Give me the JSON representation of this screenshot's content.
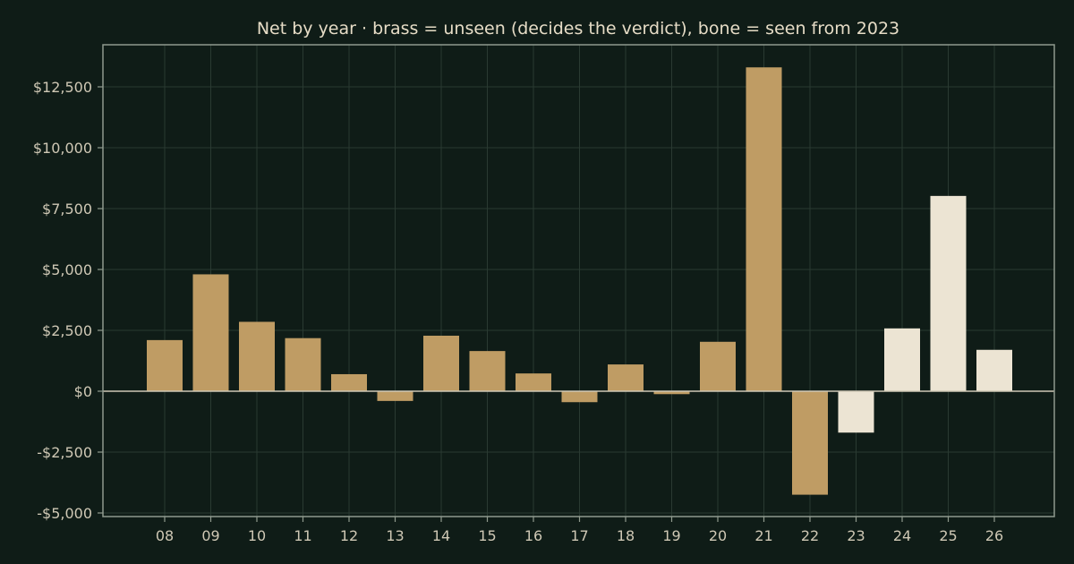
{
  "chart_data": {
    "type": "bar",
    "title": "Net by year  ·  brass = unseen (decides the verdict), bone = seen from 2023",
    "xlabel": "",
    "ylabel": "",
    "categories": [
      "08",
      "09",
      "10",
      "11",
      "12",
      "13",
      "14",
      "15",
      "16",
      "17",
      "18",
      "19",
      "20",
      "21",
      "22",
      "23",
      "24",
      "25",
      "26"
    ],
    "values": [
      2100,
      4800,
      2850,
      2180,
      700,
      -400,
      2280,
      1650,
      730,
      -450,
      1100,
      -120,
      2030,
      13300,
      -4250,
      -1700,
      2580,
      8020,
      1700
    ],
    "groups": [
      "unseen",
      "unseen",
      "unseen",
      "unseen",
      "unseen",
      "unseen",
      "unseen",
      "unseen",
      "unseen",
      "unseen",
      "unseen",
      "unseen",
      "unseen",
      "unseen",
      "unseen",
      "seen",
      "seen",
      "seen",
      "seen"
    ],
    "colors": {
      "unseen": "#bf9c64",
      "seen": "#ece4d3"
    },
    "ylim": [
      -5000,
      14000
    ],
    "yticks": [
      -5000,
      -2500,
      0,
      2500,
      5000,
      7500,
      10000,
      12500
    ],
    "ytick_labels": [
      "-$5,000",
      "-$2,500",
      "$0",
      "$2,500",
      "$5,000",
      "$7,500",
      "$10,000",
      "$12,500"
    ],
    "grid": true
  }
}
